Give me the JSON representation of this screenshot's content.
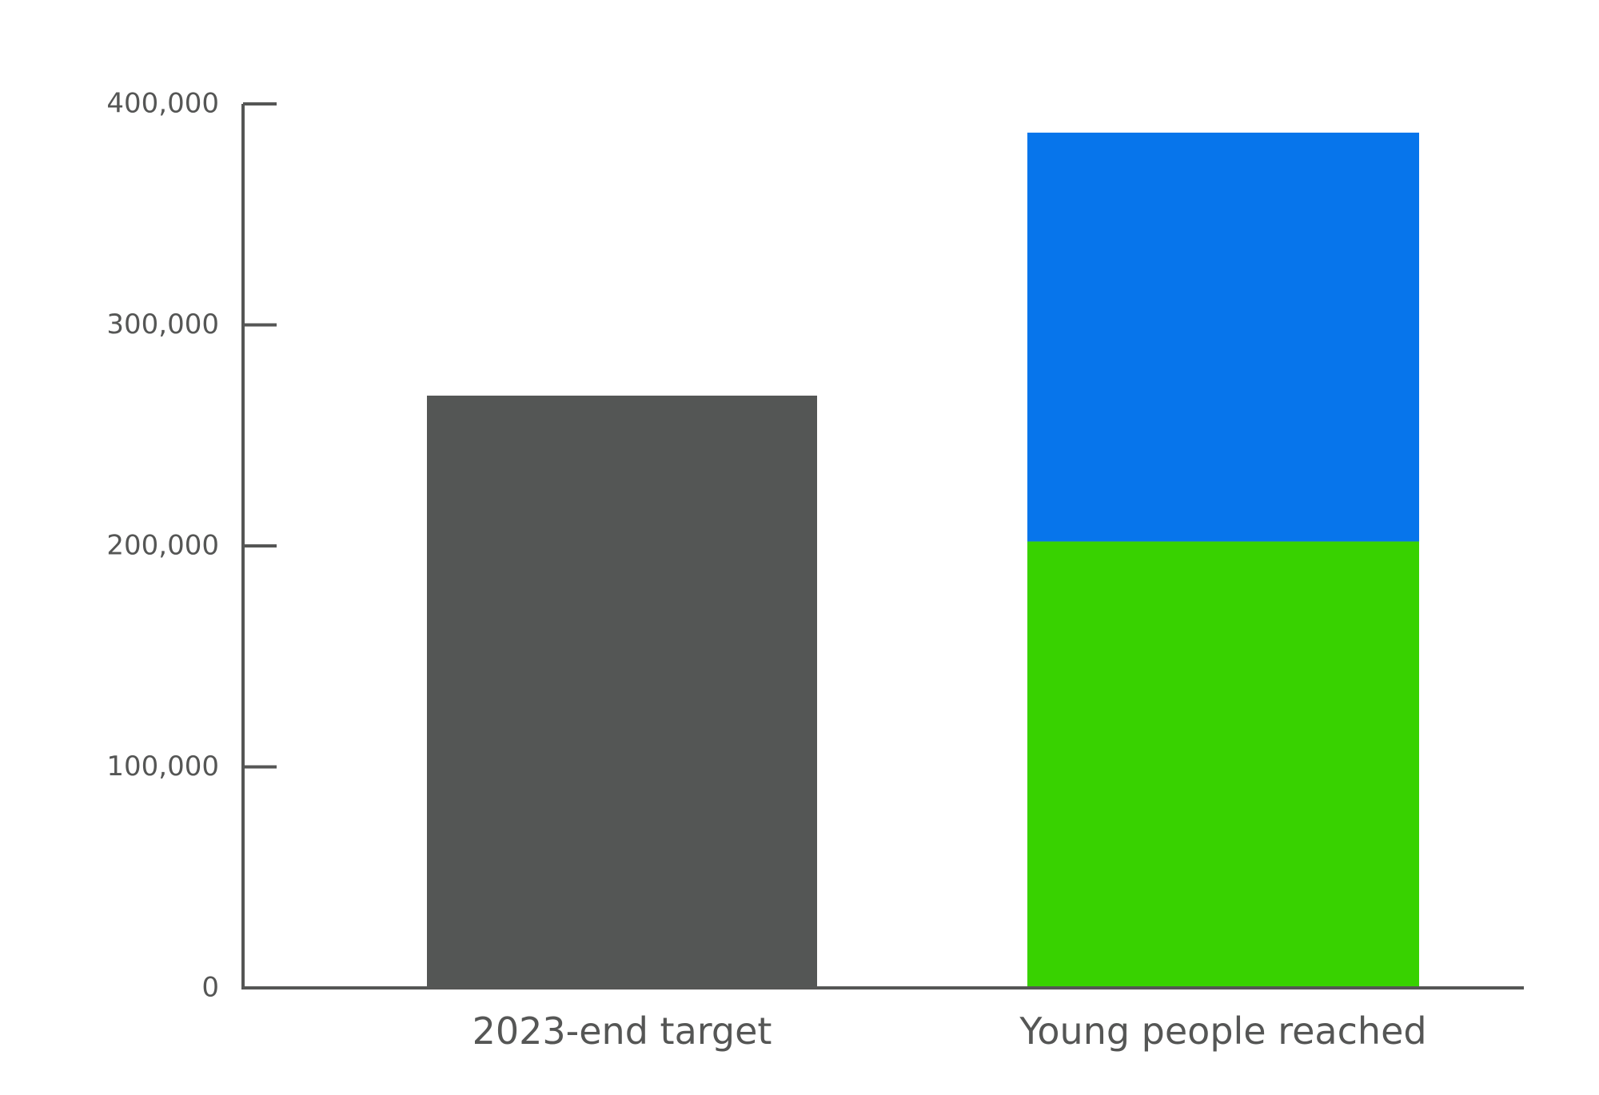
{
  "chart_data": {
    "type": "bar",
    "stacked": true,
    "categories": [
      "2023-end target",
      "Young people reached"
    ],
    "series": [
      {
        "values": [
          268000,
          202000
        ],
        "colors": [
          "#545655",
          "#38d200"
        ]
      },
      {
        "values": [
          0,
          185000
        ],
        "colors": [
          null,
          "#0775eb"
        ]
      }
    ],
    "y_ticks": [
      0,
      100000,
      200000,
      300000,
      400000
    ],
    "y_tick_labels": [
      "0",
      "100,000",
      "200,000",
      "300,000",
      "400,000"
    ],
    "ylim": [
      0,
      400000
    ],
    "grid": false,
    "legend": "none",
    "axis_color": "#555655"
  }
}
